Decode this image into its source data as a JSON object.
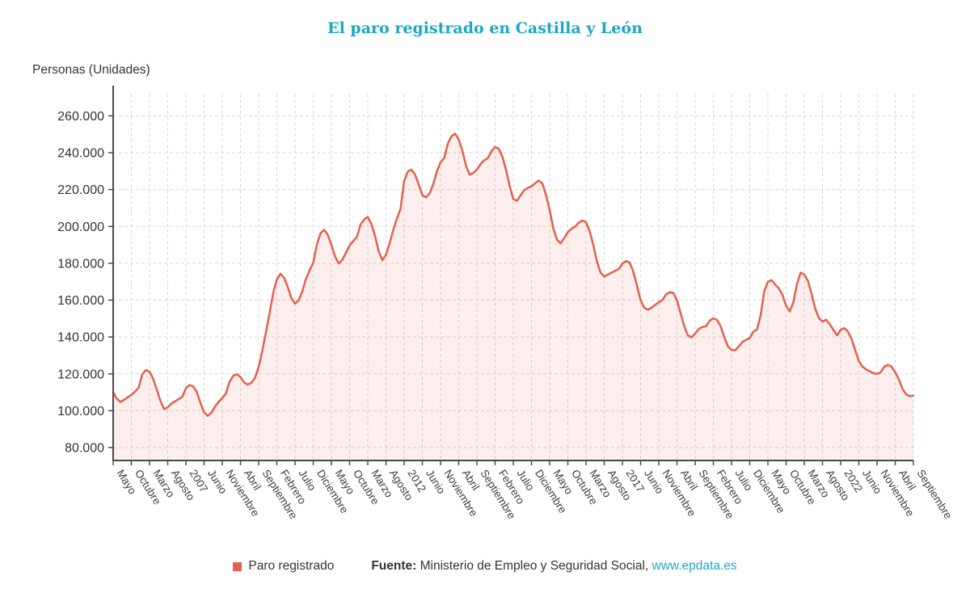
{
  "accent_color": "#1ba7c7",
  "source": {
    "prefix": "Fuente:",
    "text": " Ministerio de Empleo y Seguridad Social, ",
    "link": "www.epdata.es"
  },
  "chart_data": {
    "type": "area",
    "title": "El paro registrado en Castilla y León",
    "ylabel": "Personas (Unidades)",
    "xlabel": "",
    "grid": "dashed",
    "legend_position": "bottom",
    "line_color": "#e4614d",
    "fill_color": "rgba(228,97,77,0.10)",
    "grid_color": "#d9d9d9",
    "axis_color": "#4a4a4a",
    "ylim": [
      73000,
      272000
    ],
    "x_tick_every_months": 5,
    "x_tick_labels": [
      "Mayo",
      "Octubre",
      "Marzo",
      "Agosto",
      "2007",
      "Junio",
      "Noviembre",
      "Abril",
      "Septiembre",
      "Febrero",
      "Julio",
      "Diciembre",
      "Mayo",
      "Octubre",
      "Marzo",
      "Agosto",
      "2012",
      "Junio",
      "Noviembre",
      "Abril",
      "Septiembre",
      "Febrero",
      "Julio",
      "Diciembre",
      "Mayo",
      "Octubre",
      "Marzo",
      "Agosto",
      "2017",
      "Junio",
      "Noviembre",
      "Abril",
      "Septiembre",
      "Febrero",
      "Julio",
      "Diciembre",
      "Mayo",
      "Octubre",
      "Marzo",
      "Agosto",
      "2022",
      "Junio",
      "Noviembre",
      "Abril",
      "Septiembre"
    ],
    "y_ticks": {
      "labels": [
        "80.000",
        "100.000",
        "120.000",
        "140.000",
        "160.000",
        "180.000",
        "200.000",
        "220.000",
        "240.000",
        "260.000"
      ],
      "values": [
        80000,
        100000,
        120000,
        140000,
        160000,
        180000,
        200000,
        220000,
        240000,
        260000
      ]
    },
    "series": [
      {
        "name": "Paro registrado",
        "start": "2005-05",
        "end": "2023-09",
        "frequency": "monthly",
        "values": [
          110000,
          106500,
          104800,
          105900,
          107300,
          108600,
          110400,
          112500,
          119800,
          122000,
          121200,
          117300,
          111400,
          105200,
          100900,
          101800,
          103900,
          105100,
          106300,
          107600,
          112300,
          113900,
          113200,
          110100,
          104200,
          99100,
          97200,
          98900,
          102300,
          104900,
          106800,
          109400,
          115800,
          118900,
          119800,
          118200,
          115400,
          114100,
          115200,
          117900,
          123800,
          132600,
          142700,
          152900,
          163900,
          171200,
          174300,
          172100,
          167200,
          161000,
          158100,
          159900,
          164800,
          171600,
          176200,
          180300,
          190100,
          196300,
          198200,
          195400,
          190000,
          183700,
          179900,
          181900,
          185800,
          189700,
          192100,
          194300,
          200900,
          203800,
          205100,
          201300,
          194800,
          186400,
          181700,
          184700,
          190900,
          198100,
          204200,
          209500,
          224700,
          229800,
          230900,
          228100,
          222800,
          217000,
          215800,
          217900,
          222900,
          229900,
          234800,
          237100,
          244900,
          248900,
          250300,
          247200,
          241100,
          232900,
          228100,
          229000,
          230900,
          233800,
          235900,
          237000,
          240900,
          243100,
          242200,
          237900,
          230800,
          221900,
          214800,
          213900,
          216800,
          219700,
          220900,
          221800,
          223400,
          224900,
          223300,
          217100,
          208900,
          198900,
          192900,
          190800,
          193700,
          196900,
          198800,
          199900,
          202100,
          203200,
          202300,
          197400,
          189900,
          180900,
          174900,
          172800,
          173900,
          174900,
          175900,
          176900,
          179900,
          181200,
          180300,
          175400,
          167900,
          159900,
          155900,
          154800,
          155900,
          157400,
          158900,
          160100,
          163100,
          164300,
          163900,
          159900,
          152900,
          145900,
          140900,
          139800,
          141900,
          144400,
          145400,
          145900,
          148900,
          150100,
          149300,
          145900,
          139900,
          134900,
          132900,
          132800,
          134900,
          137400,
          138400,
          139400,
          142900,
          144100,
          151900,
          164900,
          169900,
          170900,
          168400,
          166400,
          162900,
          156900,
          153900,
          158900,
          168900,
          174900,
          173900,
          170400,
          163400,
          155400,
          150400,
          148400,
          149400,
          146900,
          143900,
          140900,
          143900,
          144900,
          142900,
          138900,
          132900,
          126900,
          123900,
          122400,
          121400,
          120400,
          119900,
          120900,
          123900,
          124900,
          123900,
          120900,
          116900,
          111900,
          108900,
          107900,
          108200
        ]
      }
    ]
  }
}
